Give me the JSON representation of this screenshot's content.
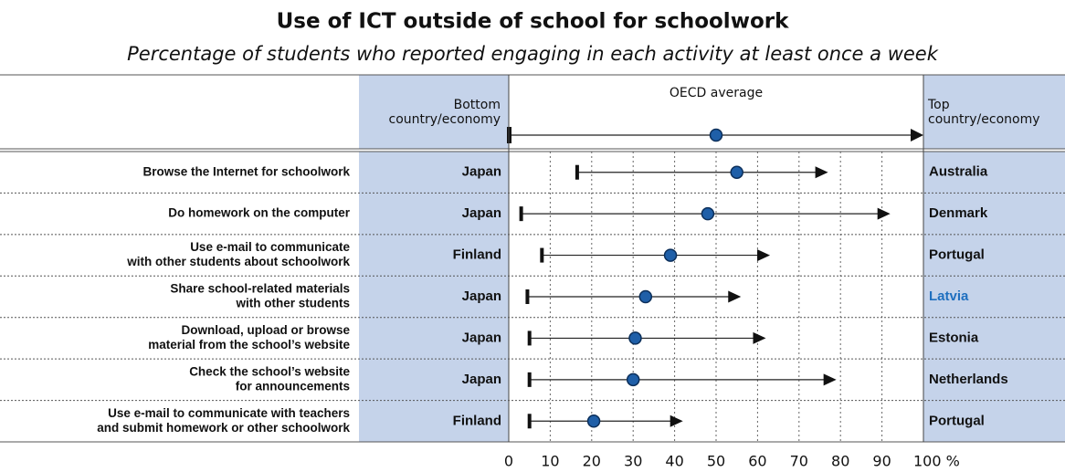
{
  "chart_data": {
    "type": "range-dot",
    "title": "Use of ICT outside of school for schoolwork",
    "subtitle": "Percentage of students who reported engaging in each activity at least once a week",
    "legend": {
      "bottom": [
        "Bottom",
        "country/economy"
      ],
      "average": "OECD average",
      "top": [
        "Top",
        "country/economy"
      ]
    },
    "categories": [
      [
        "Browse the Internet for schoolwork"
      ],
      [
        "Do homework on the computer"
      ],
      [
        "Use e-mail to communicate",
        "with other students about schoolwork"
      ],
      [
        "Share school-related materials",
        "with other students"
      ],
      [
        "Download, upload or browse",
        "material from the school’s website"
      ],
      [
        "Check the school’s website",
        "for announcements"
      ],
      [
        "Use e-mail to communicate with teachers",
        "and submit homework or other schoolwork"
      ]
    ],
    "bottom_names": [
      "Japan",
      "Japan",
      "Finland",
      "Japan",
      "Japan",
      "Japan",
      "Finland"
    ],
    "top_names": [
      "Australia",
      "Denmark",
      "Portugal",
      "Latvia",
      "Estonia",
      "Netherlands",
      "Portugal"
    ],
    "top_name_colors": [
      "#111111",
      "#111111",
      "#111111",
      "#1f6fbf",
      "#111111",
      "#111111",
      "#111111"
    ],
    "bottom_values": [
      16.5,
      3,
      8,
      4.5,
      5,
      5,
      5
    ],
    "average_values": [
      55,
      48,
      39,
      33,
      30.5,
      30,
      20.5
    ],
    "top_values": [
      77,
      92,
      63,
      56,
      62,
      79,
      42
    ],
    "dot_color": "#1f5fa8",
    "panel_color": "#c5d3ea",
    "xlim": [
      0,
      100
    ],
    "xticks": [
      0,
      10,
      20,
      30,
      40,
      50,
      60,
      70,
      80,
      90,
      {
        "value": 100,
        "label": "100 %"
      }
    ],
    "grid": true
  }
}
